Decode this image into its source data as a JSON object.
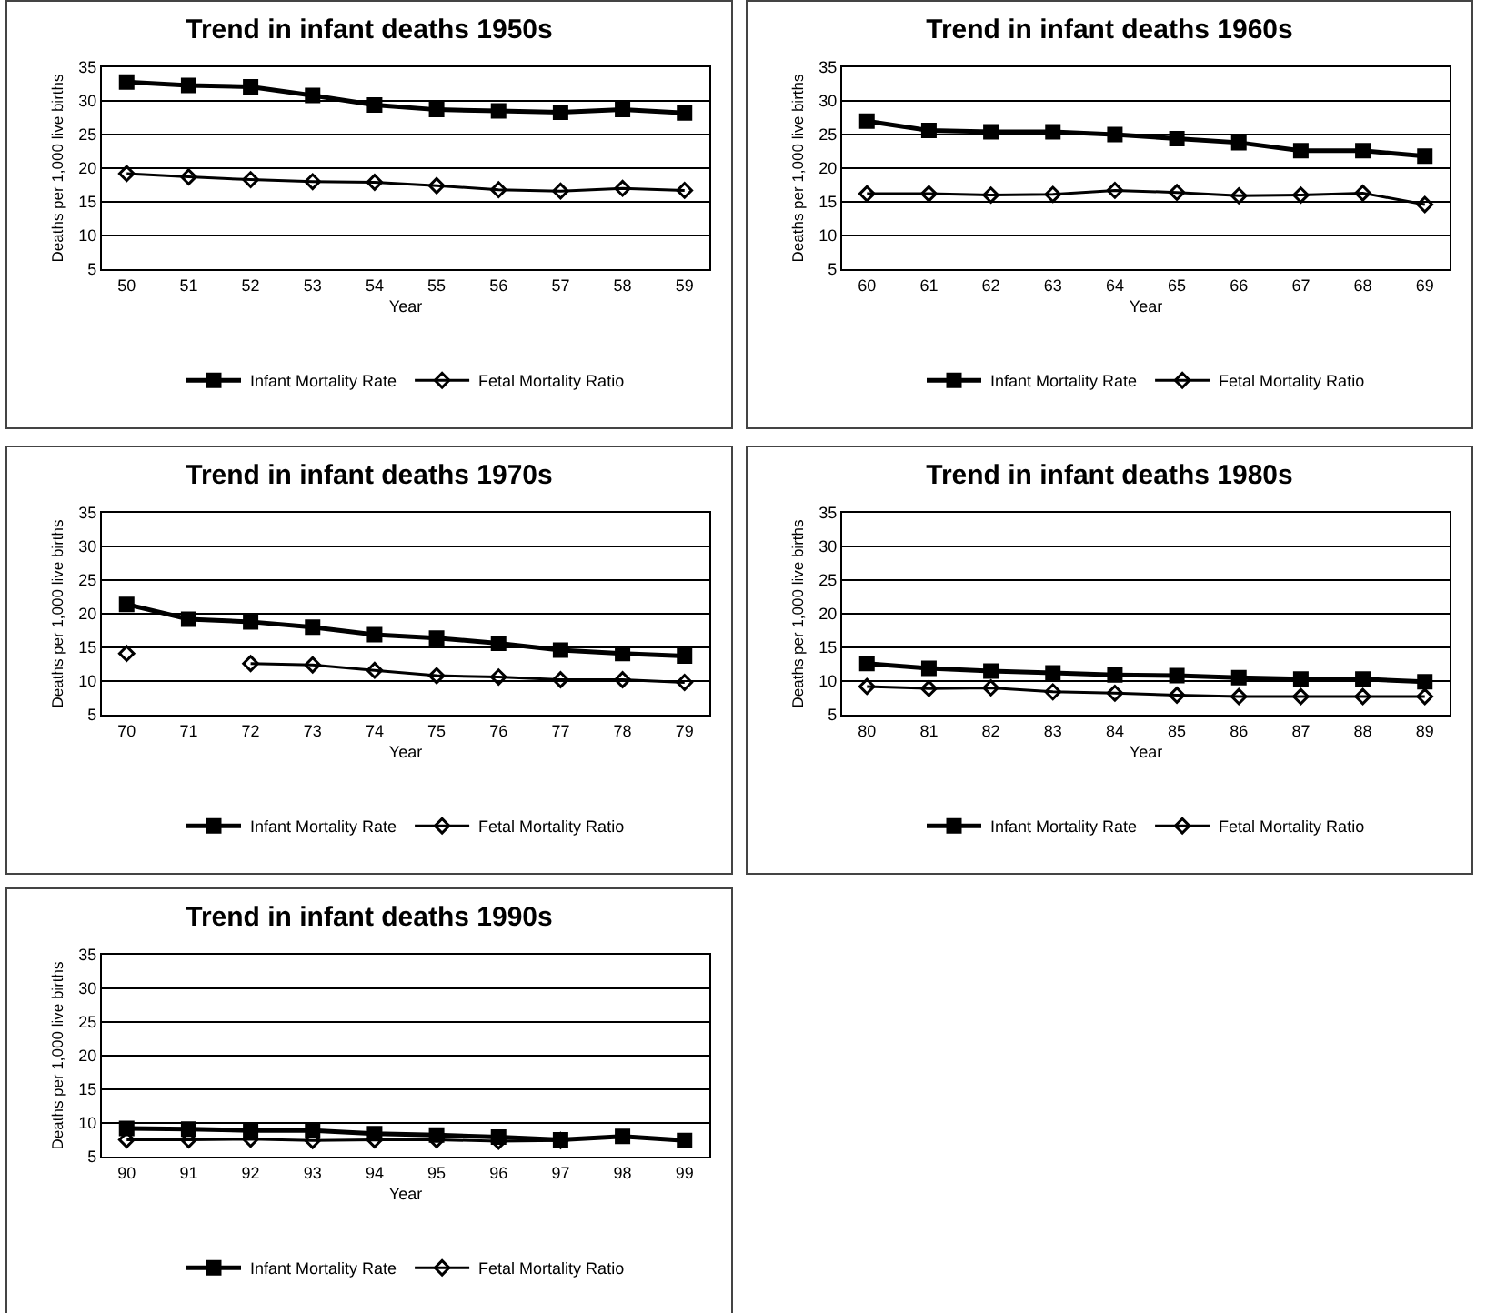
{
  "chart_data": [
    {
      "type": "line",
      "title": "Trend in infant deaths 1950s",
      "xlabel": "Year",
      "ylabel": "Deaths per 1,000 live births",
      "categories": [
        "50",
        "51",
        "52",
        "53",
        "54",
        "55",
        "56",
        "57",
        "58",
        "59"
      ],
      "ylim": [
        5,
        35
      ],
      "yticks": [
        5,
        10,
        15,
        20,
        25,
        30,
        35
      ],
      "grid": "y",
      "legend": "bottom",
      "series": [
        {
          "name": "Infant Mortality Rate",
          "color": "#000000",
          "marker": "square",
          "values": [
            32.8,
            32.3,
            32.1,
            30.8,
            29.4,
            28.7,
            28.5,
            28.3,
            28.7,
            28.2
          ]
        },
        {
          "name": "Fetal Mortality Ratio",
          "color": "#000000",
          "marker": "diamond",
          "values": [
            19.2,
            18.7,
            18.3,
            18.0,
            17.9,
            17.4,
            16.8,
            16.6,
            17.0,
            16.7
          ]
        }
      ]
    },
    {
      "type": "line",
      "title": "Trend in infant deaths 1960s",
      "xlabel": "Year",
      "ylabel": "Deaths per 1,000 live births",
      "categories": [
        "60",
        "61",
        "62",
        "63",
        "64",
        "65",
        "66",
        "67",
        "68",
        "69"
      ],
      "ylim": [
        5,
        35
      ],
      "yticks": [
        5,
        10,
        15,
        20,
        25,
        30,
        35
      ],
      "grid": "y",
      "legend": "bottom",
      "series": [
        {
          "name": "Infant Mortality Rate",
          "color": "#000000",
          "marker": "square",
          "values": [
            27.0,
            25.6,
            25.4,
            25.4,
            25.0,
            24.4,
            23.8,
            22.6,
            22.6,
            21.8
          ]
        },
        {
          "name": "Fetal Mortality Ratio",
          "color": "#000000",
          "marker": "diamond",
          "values": [
            16.2,
            16.2,
            16.0,
            16.1,
            16.7,
            16.4,
            15.9,
            16.0,
            16.3,
            14.6
          ]
        }
      ]
    },
    {
      "type": "line",
      "title": "Trend in infant deaths 1970s",
      "xlabel": "Year",
      "ylabel": "Deaths per 1,000 live births",
      "categories": [
        "70",
        "71",
        "72",
        "73",
        "74",
        "75",
        "76",
        "77",
        "78",
        "79"
      ],
      "ylim": [
        5,
        35
      ],
      "yticks": [
        5,
        10,
        15,
        20,
        25,
        30,
        35
      ],
      "grid": "y",
      "legend": "bottom",
      "series": [
        {
          "name": "Infant Mortality Rate",
          "color": "#000000",
          "marker": "square",
          "values": [
            21.4,
            19.2,
            18.8,
            18.0,
            16.9,
            16.4,
            15.6,
            14.6,
            14.1,
            13.7
          ]
        },
        {
          "name": "Fetal Mortality Ratio",
          "color": "#000000",
          "marker": "diamond",
          "values": [
            14.1,
            null,
            12.6,
            12.4,
            11.6,
            10.8,
            10.6,
            10.2,
            10.2,
            9.8
          ]
        }
      ]
    },
    {
      "type": "line",
      "title": "Trend in infant deaths 1980s",
      "xlabel": "Year",
      "ylabel": "Deaths per 1,000 live births",
      "categories": [
        "80",
        "81",
        "82",
        "83",
        "84",
        "85",
        "86",
        "87",
        "88",
        "89"
      ],
      "ylim": [
        5,
        35
      ],
      "yticks": [
        5,
        10,
        15,
        20,
        25,
        30,
        35
      ],
      "grid": "y",
      "legend": "bottom",
      "series": [
        {
          "name": "Infant Mortality Rate",
          "color": "#000000",
          "marker": "square",
          "values": [
            12.6,
            11.9,
            11.5,
            11.2,
            10.9,
            10.8,
            10.5,
            10.3,
            10.3,
            9.9
          ]
        },
        {
          "name": "Fetal Mortality Ratio",
          "color": "#000000",
          "marker": "diamond",
          "values": [
            9.2,
            8.9,
            9.0,
            8.4,
            8.2,
            7.9,
            7.7,
            7.7,
            7.7,
            7.7
          ]
        }
      ]
    },
    {
      "type": "line",
      "title": "Trend in infant deaths 1990s",
      "xlabel": "Year",
      "ylabel": "Deaths per 1,000 live births",
      "categories": [
        "90",
        "91",
        "92",
        "93",
        "94",
        "95",
        "96",
        "97",
        "98",
        "99"
      ],
      "ylim": [
        5,
        35
      ],
      "yticks": [
        5,
        10,
        15,
        20,
        25,
        30,
        35
      ],
      "grid": "y",
      "legend": "bottom",
      "series": [
        {
          "name": "Infant Mortality Rate",
          "color": "#000000",
          "marker": "square",
          "values": [
            9.2,
            9.1,
            8.9,
            8.9,
            8.4,
            8.2,
            7.9,
            7.5,
            8.0,
            7.4
          ]
        },
        {
          "name": "Fetal Mortality Ratio",
          "color": "#000000",
          "marker": "diamond",
          "values": [
            7.5,
            7.5,
            7.6,
            7.4,
            7.5,
            7.5,
            7.3,
            7.4,
            null,
            null
          ]
        }
      ]
    }
  ]
}
